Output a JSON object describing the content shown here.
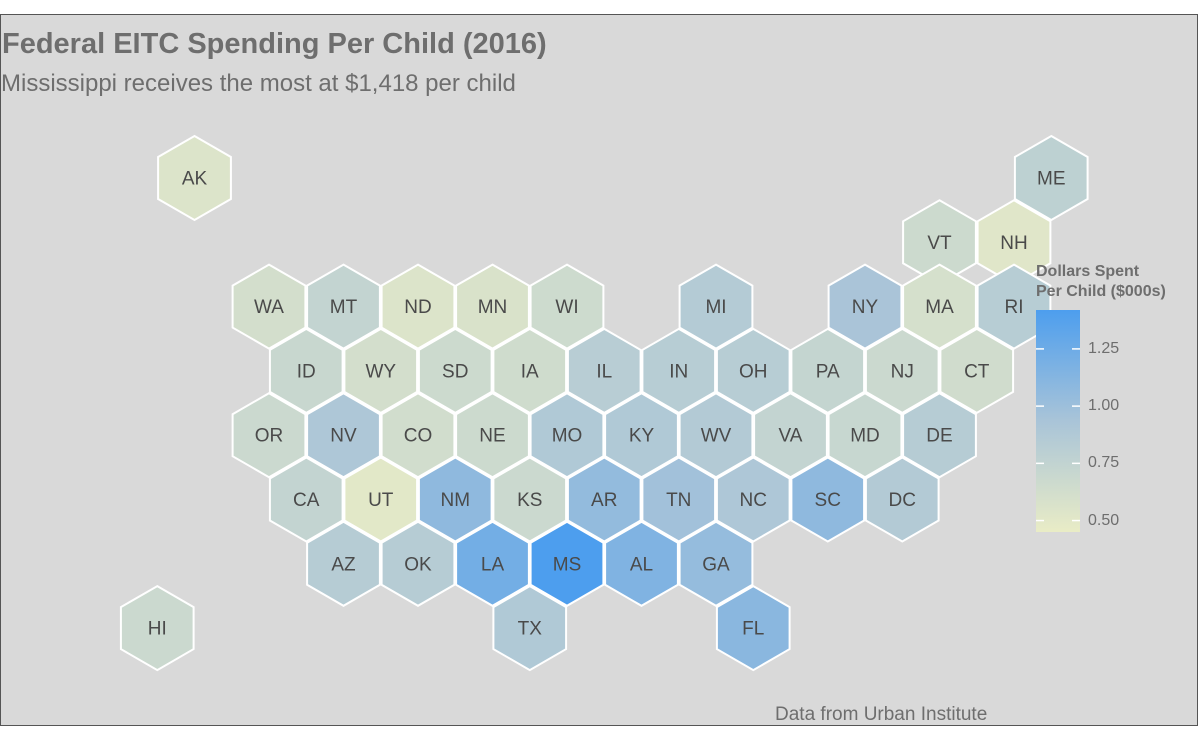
{
  "title": "Federal EITC Spending Per Child (2016)",
  "subtitle": "Mississippi receives the most at $1,418 per child",
  "caption": "Data from Urban Institute",
  "colors": {
    "panel_bg": "#d9d9d9",
    "hex_border": "#ffffff",
    "scale_low": "#e9ecc6",
    "scale_mid": "#a9c4d8",
    "scale_high": "#4d9eee",
    "text": "#6e6e6e"
  },
  "chart_data": {
    "type": "hex-tile-map",
    "title": "Federal EITC Spending Per Child (2016)",
    "subtitle": "Mississippi receives the most at $1,418 per child",
    "value_unit": "Dollars Spent Per Child ($000s)",
    "color_range": [
      0.45,
      1.42
    ],
    "legend": {
      "title_lines": [
        "Dollars Spent",
        "Per Child ($000s)"
      ],
      "ticks": [
        {
          "value": 1.25,
          "label": "1.25"
        },
        {
          "value": 1.0,
          "label": "1.00"
        },
        {
          "value": 0.75,
          "label": "0.75"
        },
        {
          "value": 0.5,
          "label": "0.50"
        }
      ]
    },
    "states": [
      {
        "abbr": "AK",
        "row": 0,
        "col": 1.0,
        "value": 0.55
      },
      {
        "abbr": "ME",
        "row": 0,
        "col": 12.5,
        "value": 0.78
      },
      {
        "abbr": "VT",
        "row": 1,
        "col": 11.0,
        "value": 0.67
      },
      {
        "abbr": "NH",
        "row": 1,
        "col": 12.0,
        "value": 0.52
      },
      {
        "abbr": "WA",
        "row": 2,
        "col": 2.0,
        "value": 0.62
      },
      {
        "abbr": "MT",
        "row": 2,
        "col": 3.0,
        "value": 0.74
      },
      {
        "abbr": "ND",
        "row": 2,
        "col": 4.0,
        "value": 0.55
      },
      {
        "abbr": "MN",
        "row": 2,
        "col": 5.0,
        "value": 0.57
      },
      {
        "abbr": "WI",
        "row": 2,
        "col": 6.0,
        "value": 0.66
      },
      {
        "abbr": "MI",
        "row": 2,
        "col": 8.0,
        "value": 0.85
      },
      {
        "abbr": "NY",
        "row": 2,
        "col": 10.0,
        "value": 0.93
      },
      {
        "abbr": "MA",
        "row": 2,
        "col": 11.0,
        "value": 0.6
      },
      {
        "abbr": "RI",
        "row": 2,
        "col": 12.0,
        "value": 0.83
      },
      {
        "abbr": "ID",
        "row": 3,
        "col": 2.5,
        "value": 0.7
      },
      {
        "abbr": "WY",
        "row": 3,
        "col": 3.5,
        "value": 0.62
      },
      {
        "abbr": "SD",
        "row": 3,
        "col": 4.5,
        "value": 0.67
      },
      {
        "abbr": "IA",
        "row": 3,
        "col": 5.5,
        "value": 0.65
      },
      {
        "abbr": "IL",
        "row": 3,
        "col": 6.5,
        "value": 0.82
      },
      {
        "abbr": "IN",
        "row": 3,
        "col": 7.5,
        "value": 0.83
      },
      {
        "abbr": "OH",
        "row": 3,
        "col": 8.5,
        "value": 0.83
      },
      {
        "abbr": "PA",
        "row": 3,
        "col": 9.5,
        "value": 0.73
      },
      {
        "abbr": "NJ",
        "row": 3,
        "col": 10.5,
        "value": 0.68
      },
      {
        "abbr": "CT",
        "row": 3,
        "col": 11.5,
        "value": 0.64
      },
      {
        "abbr": "OR",
        "row": 4,
        "col": 2.0,
        "value": 0.68
      },
      {
        "abbr": "NV",
        "row": 4,
        "col": 3.0,
        "value": 0.9
      },
      {
        "abbr": "CO",
        "row": 4,
        "col": 4.0,
        "value": 0.63
      },
      {
        "abbr": "NE",
        "row": 4,
        "col": 5.0,
        "value": 0.67
      },
      {
        "abbr": "MO",
        "row": 4,
        "col": 6.0,
        "value": 0.88
      },
      {
        "abbr": "KY",
        "row": 4,
        "col": 7.0,
        "value": 0.88
      },
      {
        "abbr": "WV",
        "row": 4,
        "col": 8.0,
        "value": 0.86
      },
      {
        "abbr": "VA",
        "row": 4,
        "col": 9.0,
        "value": 0.74
      },
      {
        "abbr": "MD",
        "row": 4,
        "col": 10.0,
        "value": 0.71
      },
      {
        "abbr": "DE",
        "row": 4,
        "col": 11.0,
        "value": 0.84
      },
      {
        "abbr": "CA",
        "row": 5,
        "col": 2.5,
        "value": 0.74
      },
      {
        "abbr": "UT",
        "row": 5,
        "col": 3.5,
        "value": 0.5
      },
      {
        "abbr": "NM",
        "row": 5,
        "col": 4.5,
        "value": 1.07
      },
      {
        "abbr": "KS",
        "row": 5,
        "col": 5.5,
        "value": 0.68
      },
      {
        "abbr": "AR",
        "row": 5,
        "col": 6.5,
        "value": 1.05
      },
      {
        "abbr": "TN",
        "row": 5,
        "col": 7.5,
        "value": 0.97
      },
      {
        "abbr": "NC",
        "row": 5,
        "col": 8.5,
        "value": 0.9
      },
      {
        "abbr": "SC",
        "row": 5,
        "col": 9.5,
        "value": 1.07
      },
      {
        "abbr": "DC",
        "row": 5,
        "col": 10.5,
        "value": 0.86
      },
      {
        "abbr": "AZ",
        "row": 6,
        "col": 3.0,
        "value": 0.84
      },
      {
        "abbr": "OK",
        "row": 6,
        "col": 4.0,
        "value": 0.84
      },
      {
        "abbr": "LA",
        "row": 6,
        "col": 5.0,
        "value": 1.22
      },
      {
        "abbr": "MS",
        "row": 6,
        "col": 6.0,
        "value": 1.418
      },
      {
        "abbr": "AL",
        "row": 6,
        "col": 7.0,
        "value": 1.15
      },
      {
        "abbr": "GA",
        "row": 6,
        "col": 8.0,
        "value": 1.04
      },
      {
        "abbr": "HI",
        "row": 7,
        "col": 0.5,
        "value": 0.68
      },
      {
        "abbr": "TX",
        "row": 7,
        "col": 5.5,
        "value": 0.88
      },
      {
        "abbr": "FL",
        "row": 7,
        "col": 8.5,
        "value": 1.1
      }
    ]
  }
}
